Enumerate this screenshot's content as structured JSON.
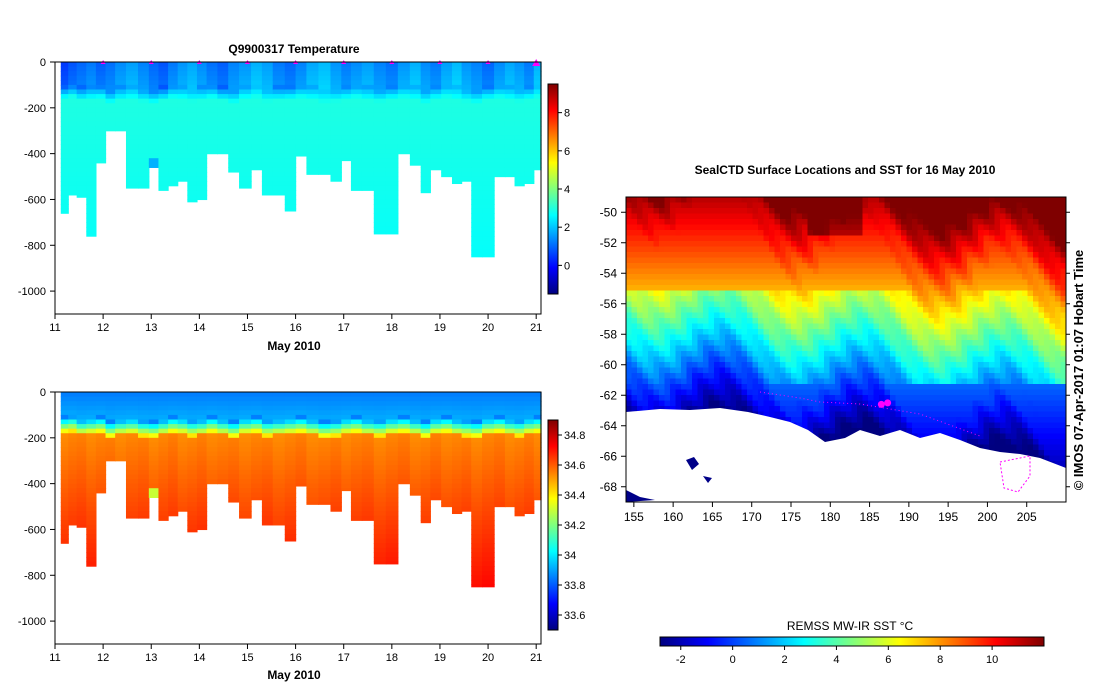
{
  "colors": {
    "jet": [
      "#00007f",
      "#0000ff",
      "#007fff",
      "#00ffff",
      "#7fff7f",
      "#ffff00",
      "#ff7f00",
      "#ff0000",
      "#7f0000"
    ],
    "mid": "#22c9a0",
    "deep_salinity": "#e08a18",
    "land": "#ffffff",
    "track": "#ff00ff"
  },
  "chart_data": [
    {
      "id": "temperature-section",
      "type": "heatmap",
      "title": "Q9900317  Temperature",
      "xlabel": "May 2010",
      "ylabel": "",
      "xlim": [
        11,
        21.1
      ],
      "ylim": [
        -1100,
        0
      ],
      "x_ticks": [
        "11",
        "12",
        "13",
        "14",
        "15",
        "16",
        "17",
        "18",
        "19",
        "20",
        "21"
      ],
      "y_ticks": [
        0,
        -200,
        -400,
        -600,
        -800,
        -1000
      ],
      "profile_markers": [
        12,
        13,
        14,
        15,
        16,
        17,
        18,
        19,
        20,
        21
      ],
      "colorbar": {
        "min": -1.5,
        "max": 9.5,
        "ticks": [
          0,
          2,
          4,
          6,
          8
        ]
      },
      "profile_days": [
        11.2,
        11.35,
        11.55,
        11.75,
        11.95,
        12.15,
        12.35,
        12.6,
        12.85,
        13.05,
        13.25,
        13.45,
        13.65,
        13.85,
        14.05,
        14.25,
        14.5,
        14.7,
        14.95,
        15.2,
        15.4,
        15.65,
        15.9,
        16.1,
        16.35,
        16.6,
        16.85,
        17.05,
        17.25,
        17.5,
        17.75,
        18.0,
        18.25,
        18.5,
        18.7,
        18.9,
        19.15,
        19.35,
        19.55,
        19.75,
        20.0,
        20.25,
        20.45,
        20.65,
        20.85,
        21.05
      ],
      "profile_max_depth": [
        660,
        580,
        590,
        760,
        440,
        300,
        300,
        550,
        550,
        460,
        560,
        540,
        520,
        610,
        600,
        400,
        400,
        480,
        550,
        470,
        580,
        580,
        650,
        410,
        490,
        490,
        520,
        430,
        560,
        560,
        750,
        750,
        400,
        450,
        570,
        470,
        500,
        530,
        520,
        850,
        850,
        500,
        500,
        540,
        530,
        470
      ],
      "surface_temp": [
        0.5,
        0.8,
        1.0,
        1.2,
        0.9,
        1.1,
        1.4,
        1.6,
        1.3,
        1.0,
        0.8,
        1.2,
        1.5,
        1.7,
        1.4,
        1.1,
        0.9,
        1.3,
        1.5,
        1.8,
        1.6,
        1.2,
        1.0,
        1.3,
        1.7,
        1.9,
        1.5,
        1.2,
        1.4,
        1.6,
        1.3,
        1.1,
        1.5,
        1.8,
        1.4,
        1.2,
        1.6,
        1.9,
        1.5,
        1.3,
        1.0,
        1.4,
        1.7,
        1.5,
        1.2,
        1.8
      ],
      "mixed_layer_depth": [
        130,
        125,
        140,
        135,
        130,
        150,
        140,
        135,
        145,
        150,
        140,
        130,
        135,
        145,
        140,
        130,
        140,
        150,
        135,
        130,
        145,
        140,
        135,
        130,
        140,
        150,
        145,
        135,
        130,
        140,
        145,
        135,
        130,
        140,
        150,
        135,
        130,
        140,
        145,
        150,
        135,
        130,
        140,
        145,
        135,
        130
      ],
      "deep_temp": 3.0
    },
    {
      "id": "salinity-section",
      "type": "heatmap",
      "title": "",
      "xlabel": "May 2010",
      "ylabel": "",
      "xlim": [
        11,
        21.1
      ],
      "ylim": [
        -1100,
        0
      ],
      "x_ticks": [
        "11",
        "12",
        "13",
        "14",
        "15",
        "16",
        "17",
        "18",
        "19",
        "20",
        "21"
      ],
      "y_ticks": [
        0,
        -200,
        -400,
        -600,
        -800,
        -1000
      ],
      "colorbar": {
        "min": 33.5,
        "max": 34.9,
        "ticks": [
          33.6,
          33.8,
          34,
          34.2,
          34.4,
          34.6,
          34.8
        ],
        "labels": [
          "33.6",
          "33.8",
          "34",
          "34.2",
          "34.4",
          "34.6",
          "34.8"
        ]
      },
      "surface_salinity": 33.85,
      "halocline_salinity": 34.1,
      "deep_salinity": 34.68,
      "max_salinity": 34.75
    },
    {
      "id": "sst-map",
      "type": "heatmap",
      "title": "SealCTD Surface Locations and SST for 16 May 2010",
      "xlabel": "",
      "ylabel": "",
      "xlim": [
        154,
        210
      ],
      "ylim": [
        -69,
        -49
      ],
      "x_ticks": [
        "155",
        "160",
        "165",
        "170",
        "175",
        "180",
        "185",
        "190",
        "195",
        "200",
        "205"
      ],
      "y_ticks": [
        "-50",
        "-52",
        "-54",
        "-56",
        "-58",
        "-60",
        "-62",
        "-64",
        "-66",
        "-68"
      ],
      "y_tick_values": [
        -50,
        -52,
        -54,
        -56,
        -58,
        -60,
        -62,
        -64,
        -66,
        -68
      ],
      "x_tick_values": [
        155,
        160,
        165,
        170,
        175,
        180,
        185,
        190,
        195,
        200,
        205
      ],
      "colorbar": {
        "label": "REMSS MW-IR SST °C",
        "min": -2.8,
        "max": 12,
        "ticks": [
          -2,
          0,
          2,
          4,
          6,
          8,
          10
        ],
        "labels": [
          "-2",
          "0",
          "2",
          "4",
          "6",
          "8",
          "10"
        ]
      },
      "seal_positions": [
        [
          186.5,
          -62.6
        ],
        [
          187.3,
          -62.5
        ]
      ],
      "credit": "© IMOS 07-Apr-2017 01:07 Hobart Time"
    }
  ]
}
